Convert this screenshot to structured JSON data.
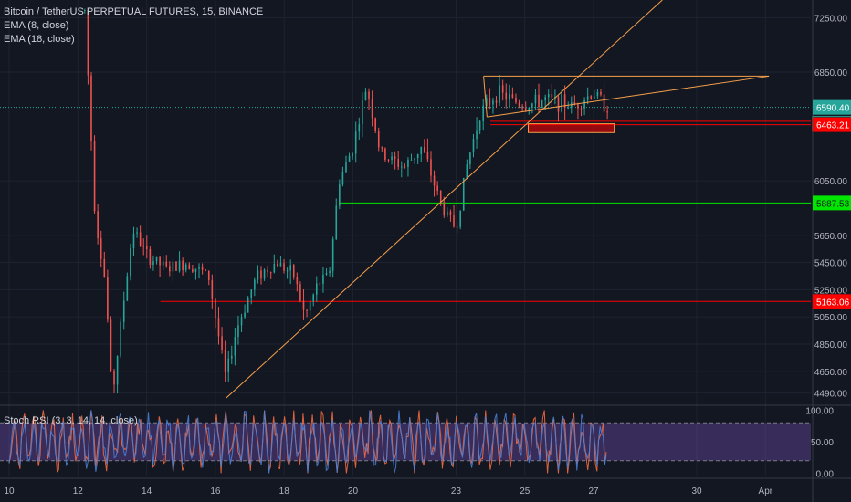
{
  "legend": {
    "title": "Bitcoin / TetherUS PERPETUAL FUTURES, 15, BINANCE",
    "ema1": "EMA (8, close)",
    "ema2": "EMA (18, close)"
  },
  "rsi_label": "Stoch RSI (3, 3, 14, 14, close)",
  "colors": {
    "background": "#131722",
    "up": "#26a69a",
    "down": "#ef5350",
    "trendline": "#f7a04b",
    "support_red": "#ff0000",
    "support_green": "#00e600",
    "current_price": "#26a69a",
    "rsi_band": "#7e57c2"
  },
  "chart_data": [
    {
      "type": "candlestick",
      "title": "Bitcoin / TetherUS PERPETUAL FUTURES, 15, BINANCE",
      "ylim": [
        4400,
        7380
      ],
      "y_ticks": [
        "7250.00",
        "6850.00",
        "6050.00",
        "5650.00",
        "5450.00",
        "5250.00",
        "5050.00",
        "4850.00",
        "4650.00",
        "4490.00"
      ],
      "x_ticks": [
        "10",
        "12",
        "14",
        "16",
        "18",
        "20",
        "23",
        "25",
        "27",
        "30",
        "Apr"
      ],
      "x_tick_days": [
        10,
        12,
        14,
        16,
        18,
        20,
        23,
        25,
        27,
        30,
        32
      ],
      "xlim": [
        10,
        35
      ],
      "price_path": [
        [
          12.2,
          7300
        ],
        [
          12.5,
          5800
        ],
        [
          12.8,
          5300
        ],
        [
          13.0,
          4450
        ],
        [
          13.3,
          5100
        ],
        [
          13.6,
          5700
        ],
        [
          14.0,
          5500
        ],
        [
          14.6,
          5400
        ],
        [
          15.2,
          5450
        ],
        [
          15.8,
          5350
        ],
        [
          16.3,
          4600
        ],
        [
          16.6,
          4950
        ],
        [
          17.2,
          5350
        ],
        [
          17.8,
          5450
        ],
        [
          18.3,
          5350
        ],
        [
          18.6,
          5050
        ],
        [
          19.0,
          5300
        ],
        [
          19.3,
          5350
        ],
        [
          19.6,
          6050
        ],
        [
          20.0,
          6300
        ],
        [
          20.4,
          6750
        ],
        [
          20.8,
          6250
        ],
        [
          21.5,
          6150
        ],
        [
          22.0,
          6300
        ],
        [
          22.6,
          5850
        ],
        [
          23.0,
          5700
        ],
        [
          23.3,
          6150
        ],
        [
          23.7,
          6550
        ],
        [
          24.2,
          6700
        ],
        [
          25.0,
          6600
        ],
        [
          25.6,
          6650
        ],
        [
          26.4,
          6600
        ],
        [
          27.0,
          6700
        ],
        [
          27.4,
          6590
        ]
      ],
      "current_price": {
        "value": 6590.4,
        "label": "6590.40",
        "countdown": "01:34",
        "countdown_prefix": "6"
      },
      "levels": [
        {
          "name": "resistance-red-upper",
          "value": 6488,
          "label": "",
          "color": "#ff0000"
        },
        {
          "name": "level-6463",
          "value": 6463.21,
          "label": "6463.21",
          "color": "#ff0000"
        },
        {
          "name": "level-5887",
          "value": 5887.53,
          "label": "5887.53",
          "color": "#00e600"
        },
        {
          "name": "level-5163",
          "value": 5163.06,
          "label": "5163.06",
          "color": "#ff0000"
        }
      ],
      "trendlines": [
        {
          "from": [
            16.3,
            4450
          ],
          "to": [
            29.0,
            7380
          ]
        },
        {
          "from": [
            23.8,
            6820
          ],
          "to": [
            32.1,
            6820
          ]
        },
        {
          "from": [
            23.8,
            6820
          ],
          "to": [
            23.9,
            6520
          ]
        },
        {
          "from": [
            23.9,
            6520
          ],
          "to": [
            32.1,
            6820
          ]
        }
      ],
      "boxes": [
        {
          "x_from": 25.1,
          "x_to": 27.6,
          "y_from": 6470,
          "y_to": 6405
        }
      ]
    },
    {
      "type": "line",
      "title": "Stoch RSI (3, 3, 14, 14, close)",
      "ylim": [
        -5,
        105
      ],
      "y_ticks": [
        "100.00",
        "50.00",
        "0.00"
      ],
      "band": [
        20,
        80
      ],
      "period_days": 0.14,
      "x_range": [
        10.0,
        27.4
      ]
    }
  ]
}
